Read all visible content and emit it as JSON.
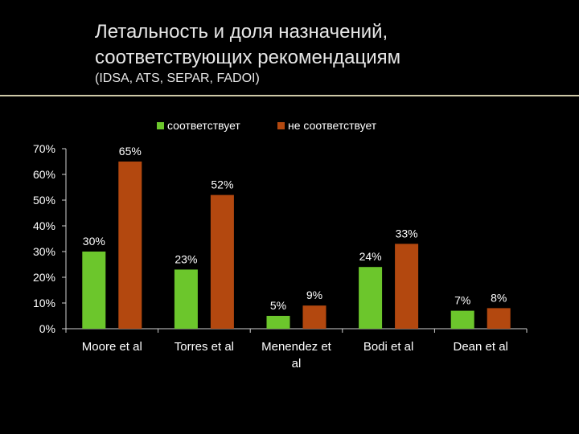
{
  "slide": {
    "title_line1": "Летальность и доля назначений,",
    "title_line2": "соответствующих рекомендациям",
    "subtitle": "(IDSA, ATS, SEPAR, FADOI)"
  },
  "colors": {
    "background": "#000000",
    "rule": "#cfc9a8",
    "series_conform": "#6cc62c",
    "series_nonconform": "#b3480f",
    "axis": "#d0d0d0",
    "text": "#ffffff"
  },
  "chart_data": {
    "type": "bar",
    "title": "",
    "xlabel": "",
    "ylabel": "",
    "ylim": [
      0,
      70
    ],
    "yticks": [
      0,
      10,
      20,
      30,
      40,
      50,
      60,
      70
    ],
    "ytick_labels": [
      "0%",
      "10%",
      "20%",
      "30%",
      "40%",
      "50%",
      "60%",
      "70%"
    ],
    "grid": false,
    "legend_position": "top-center",
    "categories": [
      {
        "line1": "Moore et al",
        "line2": ""
      },
      {
        "line1": "Torres et al",
        "line2": ""
      },
      {
        "line1": "Menendez et",
        "line2": "al"
      },
      {
        "line1": "Bodi et al",
        "line2": ""
      },
      {
        "line1": "Dean et al",
        "line2": ""
      }
    ],
    "series": [
      {
        "name": "соответствует",
        "values": [
          30,
          23,
          5,
          24,
          7
        ],
        "labels": [
          "30%",
          "23%",
          "5%",
          "24%",
          "7%"
        ]
      },
      {
        "name": "не соответствует",
        "values": [
          65,
          52,
          9,
          33,
          8
        ],
        "labels": [
          "65%",
          "52%",
          "9%",
          "33%",
          "8%"
        ]
      }
    ]
  }
}
